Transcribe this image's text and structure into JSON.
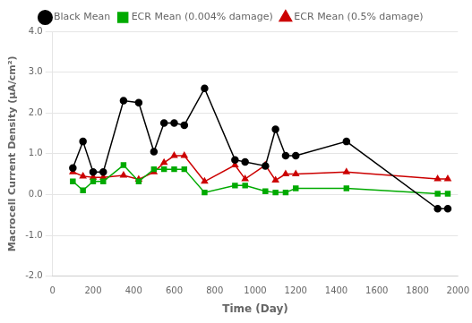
{
  "chart_data": {
    "type": "line",
    "xlabel": "Time (Day)",
    "ylabel": "Macrocell Current Density (μA/cm²)",
    "x": [
      100,
      150,
      200,
      250,
      350,
      425,
      500,
      550,
      600,
      650,
      750,
      900,
      950,
      1050,
      1100,
      1150,
      1200,
      1450,
      1900,
      1950
    ],
    "series": [
      {
        "name": "Black Mean",
        "color": "#000000",
        "marker": "circle",
        "values": [
          0.65,
          1.3,
          0.55,
          0.55,
          2.3,
          2.25,
          1.05,
          1.75,
          1.75,
          1.7,
          2.6,
          0.85,
          0.8,
          0.7,
          1.6,
          0.95,
          0.95,
          1.3,
          -0.35,
          -0.35
        ]
      },
      {
        "name": "ECR Mean (0.004% damage)",
        "color": "#00aa00",
        "marker": "square",
        "values": [
          0.32,
          0.1,
          0.32,
          0.32,
          0.72,
          0.32,
          0.62,
          0.62,
          0.62,
          0.62,
          0.05,
          0.22,
          0.22,
          0.08,
          0.05,
          0.05,
          0.15,
          0.15,
          0.02,
          0.02
        ]
      },
      {
        "name": "ECR Mean (0.5% damage)",
        "color": "#cc0000",
        "marker": "triangle",
        "values": [
          0.55,
          0.45,
          0.42,
          0.42,
          0.47,
          0.37,
          0.55,
          0.78,
          0.95,
          0.95,
          0.32,
          0.72,
          0.38,
          0.72,
          0.35,
          0.5,
          0.5,
          0.55,
          0.38,
          0.38
        ]
      }
    ],
    "xlim": [
      0,
      2000
    ],
    "xticks": [
      0,
      200,
      400,
      600,
      800,
      1000,
      1200,
      1400,
      1600,
      1800,
      2000
    ],
    "ylim": [
      -2.0,
      4.0
    ],
    "yticks": [
      {
        "value": -2.0,
        "label": "-2.0"
      },
      {
        "value": -1.0,
        "label": "-1.0"
      },
      {
        "value": 0.0,
        "label": "0.0"
      },
      {
        "value": 1.0,
        "label": "1.0"
      },
      {
        "value": 2.0,
        "label": "2.0"
      },
      {
        "value": 3.0,
        "label": "3.0"
      },
      {
        "value": 4.0,
        "label": "4.0"
      }
    ],
    "grid": "y",
    "legend": "top"
  }
}
